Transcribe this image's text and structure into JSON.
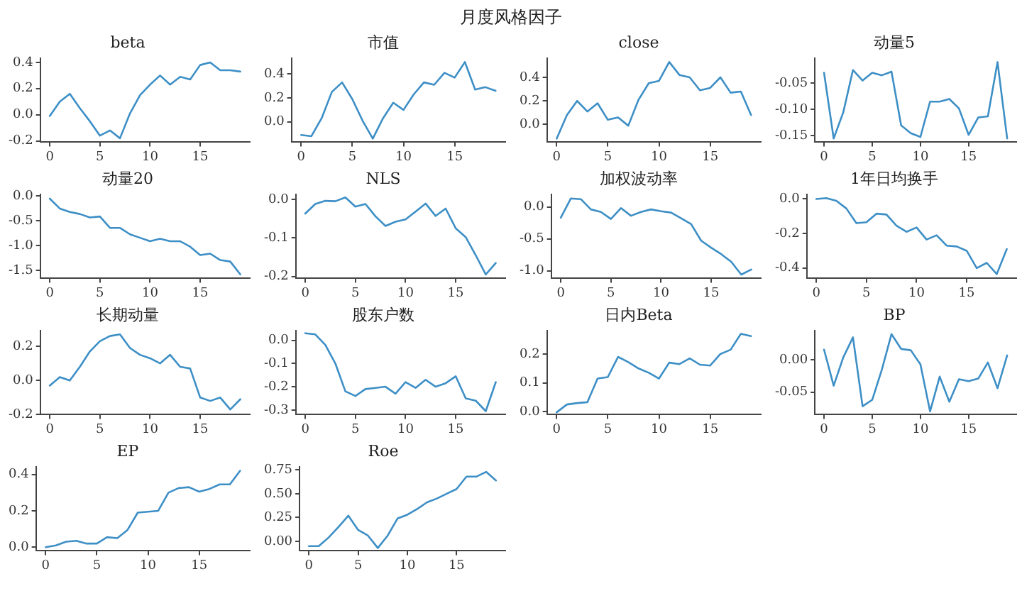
{
  "chart_data": [
    {
      "type": "line",
      "title": "beta",
      "annotations": [
        "月度风格因子"
      ],
      "color": "#3d8fc6",
      "x": [
        0,
        1,
        2,
        3,
        4,
        5,
        6,
        7,
        8,
        9,
        10,
        11,
        12,
        13,
        14,
        15,
        16,
        17,
        18,
        19
      ],
      "values": [
        -0.01,
        0.1,
        0.16,
        0.05,
        -0.05,
        -0.16,
        -0.12,
        -0.18,
        0.01,
        0.15,
        0.23,
        0.3,
        0.23,
        0.29,
        0.27,
        0.38,
        0.4,
        0.34,
        0.34,
        0.33
      ],
      "xlim": [
        -0.95,
        19.95
      ],
      "xticks": [
        0,
        5,
        10,
        15
      ],
      "ylim": [
        -0.21,
        0.43
      ],
      "yticks": [
        {
          "value": -0.2,
          "label": "-0.2"
        },
        {
          "value": 0,
          "label": "0.0"
        },
        {
          "value": 0.2,
          "label": "0.2"
        },
        {
          "value": 0.4,
          "label": "0.4"
        }
      ]
    },
    {
      "type": "line",
      "title": "市值",
      "color": "#3d8fc6",
      "x": [
        0,
        1,
        2,
        3,
        4,
        5,
        6,
        7,
        8,
        9,
        10,
        11,
        12,
        13,
        14,
        15,
        16,
        17,
        18,
        19
      ],
      "values": [
        -0.11,
        -0.12,
        0.03,
        0.25,
        0.33,
        0.19,
        0.01,
        -0.14,
        0.03,
        0.16,
        0.1,
        0.23,
        0.33,
        0.31,
        0.41,
        0.37,
        0.5,
        0.27,
        0.29,
        0.26
      ],
      "xlim": [
        -0.95,
        19.95
      ],
      "xticks": [
        0,
        5,
        10,
        15
      ],
      "ylim": [
        -0.17,
        0.53
      ],
      "yticks": [
        {
          "value": 0,
          "label": "0.0"
        },
        {
          "value": 0.2,
          "label": "0.2"
        },
        {
          "value": 0.4,
          "label": "0.4"
        }
      ]
    },
    {
      "type": "line",
      "title": "close",
      "color": "#3d8fc6",
      "x": [
        0,
        1,
        2,
        3,
        4,
        5,
        6,
        7,
        8,
        9,
        10,
        11,
        12,
        13,
        14,
        15,
        16,
        17,
        18,
        19
      ],
      "values": [
        -0.12,
        0.08,
        0.2,
        0.11,
        0.18,
        0.04,
        0.06,
        -0.01,
        0.21,
        0.35,
        0.37,
        0.53,
        0.42,
        0.4,
        0.29,
        0.31,
        0.4,
        0.27,
        0.28,
        0.08
      ],
      "xlim": [
        -0.95,
        19.95
      ],
      "xticks": [
        0,
        5,
        10,
        15
      ],
      "ylim": [
        -0.15,
        0.56
      ],
      "yticks": [
        {
          "value": 0,
          "label": "0.0"
        },
        {
          "value": 0.2,
          "label": "0.2"
        },
        {
          "value": 0.4,
          "label": "0.4"
        }
      ]
    },
    {
      "type": "line",
      "title": "动量5",
      "color": "#3d8fc6",
      "x": [
        0,
        1,
        2,
        3,
        4,
        5,
        6,
        7,
        8,
        9,
        10,
        11,
        12,
        13,
        14,
        15,
        16,
        17,
        18,
        19
      ],
      "values": [
        -0.03,
        -0.155,
        -0.105,
        -0.025,
        -0.045,
        -0.03,
        -0.035,
        -0.028,
        -0.13,
        -0.145,
        -0.152,
        -0.085,
        -0.085,
        -0.08,
        -0.098,
        -0.148,
        -0.115,
        -0.113,
        -0.01,
        -0.155
      ],
      "xlim": [
        -0.95,
        19.95
      ],
      "xticks": [
        0,
        5,
        10,
        15
      ],
      "ylim": [
        -0.162,
        -0.003
      ],
      "yticks": [
        {
          "value": -0.15,
          "label": "-0.15"
        },
        {
          "value": -0.1,
          "label": "-0.10"
        },
        {
          "value": -0.05,
          "label": "-0.05"
        }
      ]
    },
    {
      "type": "line",
      "title": "动量20",
      "color": "#3d8fc6",
      "x": [
        0,
        1,
        2,
        3,
        4,
        5,
        6,
        7,
        8,
        9,
        10,
        11,
        12,
        13,
        14,
        15,
        16,
        17,
        18,
        19
      ],
      "values": [
        -0.05,
        -0.25,
        -0.32,
        -0.36,
        -0.43,
        -0.41,
        -0.64,
        -0.64,
        -0.77,
        -0.84,
        -0.91,
        -0.86,
        -0.91,
        -0.91,
        -1.02,
        -1.19,
        -1.16,
        -1.29,
        -1.32,
        -1.58
      ],
      "xlim": [
        -0.95,
        19.95
      ],
      "xticks": [
        0,
        5,
        10,
        15
      ],
      "ylim": [
        -1.66,
        0.03
      ],
      "yticks": [
        {
          "value": -1.5,
          "label": "-1.5"
        },
        {
          "value": -1,
          "label": "-1.0"
        },
        {
          "value": -0.5,
          "label": "-0.5"
        },
        {
          "value": 0,
          "label": "0.0"
        }
      ]
    },
    {
      "type": "line",
      "title": "NLS",
      "color": "#3d8fc6",
      "x": [
        0,
        1,
        2,
        3,
        4,
        5,
        6,
        7,
        8,
        9,
        10,
        11,
        12,
        13,
        14,
        15,
        16,
        17,
        18,
        19
      ],
      "values": [
        -0.037,
        -0.012,
        -0.004,
        -0.005,
        0.005,
        -0.019,
        -0.012,
        -0.044,
        -0.069,
        -0.058,
        -0.052,
        -0.032,
        -0.011,
        -0.043,
        -0.024,
        -0.075,
        -0.098,
        -0.145,
        -0.195,
        -0.165
      ],
      "xlim": [
        -0.95,
        19.95
      ],
      "xticks": [
        0,
        5,
        10,
        15
      ],
      "ylim": [
        -0.205,
        0.012
      ],
      "yticks": [
        {
          "value": -0.2,
          "label": "-0.2"
        },
        {
          "value": -0.1,
          "label": "-0.1"
        },
        {
          "value": 0,
          "label": "0.0"
        }
      ]
    },
    {
      "type": "line",
      "title": "加权波动率",
      "color": "#3d8fc6",
      "x": [
        0,
        1,
        2,
        3,
        4,
        5,
        6,
        7,
        8,
        9,
        10,
        11,
        12,
        13,
        14,
        15,
        16,
        17,
        18,
        19
      ],
      "values": [
        -0.17,
        0.13,
        0.12,
        -0.04,
        -0.08,
        -0.19,
        -0.02,
        -0.14,
        -0.08,
        -0.04,
        -0.07,
        -0.09,
        -0.18,
        -0.27,
        -0.53,
        -0.64,
        -0.74,
        -0.86,
        -1.06,
        -0.98
      ],
      "xlim": [
        -0.95,
        19.95
      ],
      "xticks": [
        0,
        5,
        10,
        15
      ],
      "ylim": [
        -1.12,
        0.19
      ],
      "yticks": [
        {
          "value": -1,
          "label": "-1.0"
        },
        {
          "value": -0.5,
          "label": "-0.5"
        },
        {
          "value": 0,
          "label": "0.0"
        }
      ]
    },
    {
      "type": "line",
      "title": "1年日均换手",
      "color": "#3d8fc6",
      "x": [
        0,
        1,
        2,
        3,
        4,
        5,
        6,
        7,
        8,
        9,
        10,
        11,
        12,
        13,
        14,
        15,
        16,
        17,
        18,
        19
      ],
      "values": [
        0.0,
        0.005,
        -0.01,
        -0.055,
        -0.14,
        -0.135,
        -0.085,
        -0.09,
        -0.155,
        -0.19,
        -0.165,
        -0.235,
        -0.21,
        -0.27,
        -0.275,
        -0.3,
        -0.4,
        -0.37,
        -0.435,
        -0.29
      ],
      "xlim": [
        -0.95,
        19.95
      ],
      "xticks": [
        0,
        5,
        10,
        15
      ],
      "ylim": [
        -0.46,
        0.025
      ],
      "yticks": [
        {
          "value": -0.4,
          "label": "-0.4"
        },
        {
          "value": -0.2,
          "label": "-0.2"
        },
        {
          "value": 0,
          "label": "0.0"
        }
      ]
    },
    {
      "type": "line",
      "title": "长期动量",
      "color": "#3d8fc6",
      "x": [
        0,
        1,
        2,
        3,
        4,
        5,
        6,
        7,
        8,
        9,
        10,
        11,
        12,
        13,
        14,
        15,
        16,
        17,
        18,
        19
      ],
      "values": [
        -0.03,
        0.02,
        0.0,
        0.08,
        0.17,
        0.23,
        0.26,
        0.27,
        0.19,
        0.15,
        0.13,
        0.1,
        0.15,
        0.08,
        0.07,
        -0.1,
        -0.12,
        -0.1,
        -0.17,
        -0.11
      ],
      "xlim": [
        -0.95,
        19.95
      ],
      "xticks": [
        0,
        5,
        10,
        15
      ],
      "ylim": [
        -0.2,
        0.29
      ],
      "yticks": [
        {
          "value": -0.2,
          "label": "-0.2"
        },
        {
          "value": 0,
          "label": "0.0"
        },
        {
          "value": 0.2,
          "label": "0.2"
        }
      ]
    },
    {
      "type": "line",
      "title": "股东户数",
      "color": "#3d8fc6",
      "x": [
        0,
        1,
        2,
        3,
        4,
        5,
        6,
        7,
        8,
        9,
        10,
        11,
        12,
        13,
        14,
        15,
        16,
        17,
        18,
        19
      ],
      "values": [
        0.03,
        0.025,
        -0.02,
        -0.1,
        -0.22,
        -0.24,
        -0.21,
        -0.205,
        -0.2,
        -0.23,
        -0.18,
        -0.205,
        -0.17,
        -0.2,
        -0.185,
        -0.155,
        -0.25,
        -0.26,
        -0.305,
        -0.18
      ],
      "xlim": [
        -0.95,
        19.95
      ],
      "xticks": [
        0,
        5,
        10,
        15
      ],
      "ylim": [
        -0.32,
        0.04
      ],
      "yticks": [
        {
          "value": -0.3,
          "label": "-0.3"
        },
        {
          "value": -0.2,
          "label": "-0.2"
        },
        {
          "value": -0.1,
          "label": "-0.1"
        },
        {
          "value": 0,
          "label": "0.0"
        }
      ]
    },
    {
      "type": "line",
      "title": "日内Beta",
      "color": "#3d8fc6",
      "x": [
        0,
        1,
        2,
        3,
        4,
        5,
        6,
        7,
        8,
        9,
        10,
        11,
        12,
        13,
        14,
        15,
        16,
        17,
        18,
        19
      ],
      "values": [
        -0.002,
        0.025,
        0.03,
        0.033,
        0.115,
        0.12,
        0.19,
        0.172,
        0.15,
        0.135,
        0.115,
        0.17,
        0.165,
        0.185,
        0.163,
        0.16,
        0.2,
        0.215,
        0.27,
        0.262
      ],
      "xlim": [
        -0.95,
        19.95
      ],
      "xticks": [
        0,
        5,
        10,
        15
      ],
      "ylim": [
        -0.01,
        0.28
      ],
      "yticks": [
        {
          "value": 0,
          "label": "0.0"
        },
        {
          "value": 0.1,
          "label": "0.1"
        },
        {
          "value": 0.2,
          "label": "0.2"
        }
      ]
    },
    {
      "type": "line",
      "title": "BP",
      "color": "#3d8fc6",
      "x": [
        0,
        1,
        2,
        3,
        4,
        5,
        6,
        7,
        8,
        9,
        10,
        11,
        12,
        13,
        14,
        15,
        16,
        17,
        18,
        19
      ],
      "values": [
        0.016,
        -0.04,
        0.004,
        0.035,
        -0.072,
        -0.062,
        -0.015,
        0.04,
        0.017,
        0.015,
        -0.007,
        -0.08,
        -0.026,
        -0.065,
        -0.03,
        -0.033,
        -0.029,
        -0.004,
        -0.044,
        0.007
      ],
      "xlim": [
        -0.95,
        19.95
      ],
      "xticks": [
        0,
        5,
        10,
        15
      ],
      "ylim": [
        -0.085,
        0.045
      ],
      "yticks": [
        {
          "value": -0.05,
          "label": "-0.05"
        },
        {
          "value": 0,
          "label": "0.00"
        }
      ]
    },
    {
      "type": "line",
      "title": "EP",
      "color": "#3d8fc6",
      "x": [
        0,
        1,
        2,
        3,
        4,
        5,
        6,
        7,
        8,
        9,
        10,
        11,
        12,
        13,
        14,
        15,
        16,
        17,
        18,
        19
      ],
      "values": [
        0.0,
        0.01,
        0.03,
        0.035,
        0.02,
        0.02,
        0.055,
        0.05,
        0.095,
        0.19,
        0.195,
        0.2,
        0.3,
        0.325,
        0.33,
        0.305,
        0.32,
        0.345,
        0.345,
        0.42
      ],
      "xlim": [
        -0.95,
        19.95
      ],
      "xticks": [
        0,
        5,
        10,
        15
      ],
      "ylim": [
        -0.02,
        0.44
      ],
      "yticks": [
        {
          "value": 0,
          "label": "0.0"
        },
        {
          "value": 0.2,
          "label": "0.2"
        },
        {
          "value": 0.4,
          "label": "0.4"
        }
      ]
    },
    {
      "type": "line",
      "title": "Roe",
      "color": "#3d8fc6",
      "x": [
        0,
        1,
        2,
        3,
        4,
        5,
        6,
        7,
        8,
        9,
        10,
        11,
        12,
        13,
        14,
        15,
        16,
        17,
        18,
        19
      ],
      "values": [
        -0.05,
        -0.05,
        0.04,
        0.15,
        0.27,
        0.12,
        0.06,
        -0.07,
        0.06,
        0.24,
        0.28,
        0.34,
        0.41,
        0.45,
        0.5,
        0.55,
        0.68,
        0.68,
        0.73,
        0.64
      ],
      "xlim": [
        -0.95,
        19.95
      ],
      "xticks": [
        0,
        5,
        10,
        15
      ],
      "ylim": [
        -0.1,
        0.78
      ],
      "yticks": [
        {
          "value": 0,
          "label": "0.00"
        },
        {
          "value": 0.25,
          "label": "0.25"
        },
        {
          "value": 0.5,
          "label": "0.50"
        },
        {
          "value": 0.75,
          "label": "0.75"
        }
      ]
    }
  ]
}
